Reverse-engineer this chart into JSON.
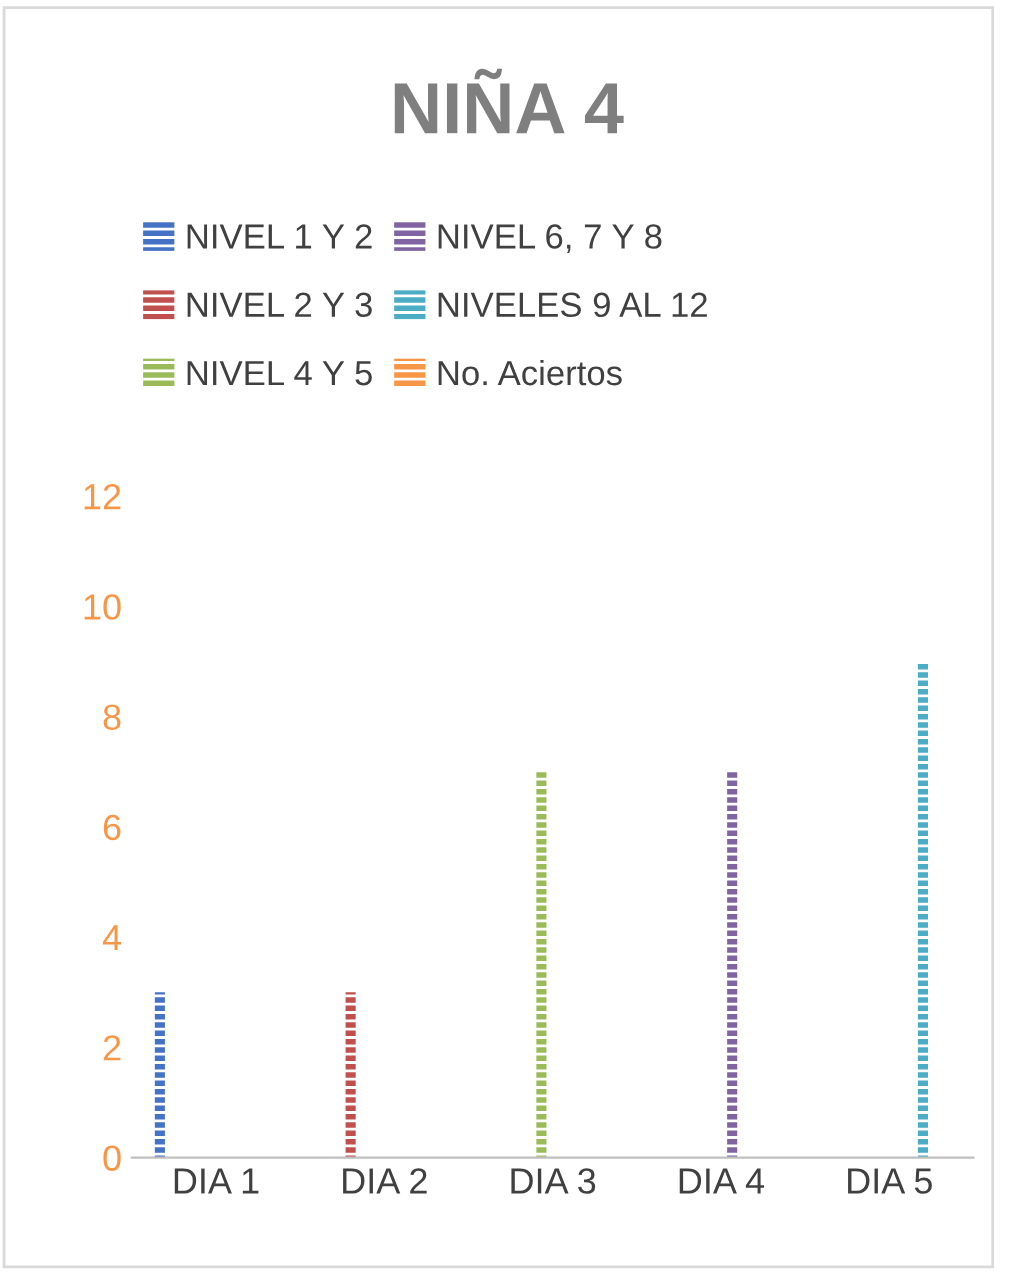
{
  "chart_data": {
    "type": "bar",
    "title": "NIÑA 4",
    "categories": [
      "DIA 1",
      "DIA 2",
      "DIA 3",
      "DIA 4",
      "DIA 5"
    ],
    "series": [
      {
        "name": "NIVEL 1 Y 2",
        "color": "#4472c4",
        "values": [
          3,
          null,
          null,
          null,
          null
        ]
      },
      {
        "name": "NIVEL 2 Y 3",
        "color": "#c0504d",
        "values": [
          null,
          3,
          null,
          null,
          null
        ]
      },
      {
        "name": "NIVEL 4 Y 5",
        "color": "#9bbb59",
        "values": [
          null,
          null,
          7,
          null,
          null
        ]
      },
      {
        "name": "NIVEL 6, 7 Y 8",
        "color": "#8064a2",
        "values": [
          null,
          null,
          null,
          7,
          null
        ]
      },
      {
        "name": "NIVELES 9 AL 12",
        "color": "#4bacc6",
        "values": [
          null,
          null,
          null,
          null,
          9
        ]
      },
      {
        "name": "No. Aciertos",
        "color": "#f79646",
        "values": [
          null,
          null,
          null,
          null,
          null
        ]
      }
    ],
    "ylim": [
      0,
      12
    ],
    "yticks": [
      0,
      2,
      4,
      6,
      8,
      10,
      12
    ],
    "grid": false,
    "legend": "top"
  }
}
